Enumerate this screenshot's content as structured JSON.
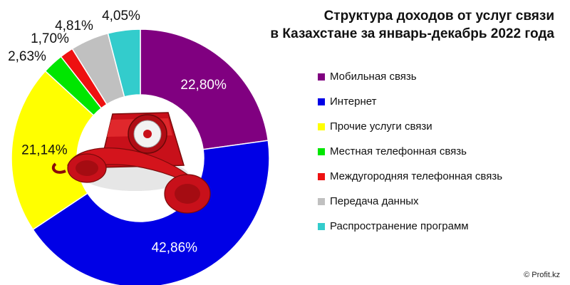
{
  "title_line1": "Структура доходов от услуг связи",
  "title_line2": "в Казахстане за январь-декабрь 2022 года",
  "copyright": "© Profit.kz",
  "chart_data": {
    "type": "pie",
    "donut": true,
    "legend_position": "right",
    "slices": [
      {
        "name": "Мобильная связь",
        "value": 22.8,
        "label": "22,80%",
        "color": "#800080"
      },
      {
        "name": "Интернет",
        "value": 42.86,
        "label": "42,86%",
        "color": "#0000e6"
      },
      {
        "name": "Прочие услуги связи",
        "value": 21.14,
        "label": "21,14%",
        "color": "#ffff00"
      },
      {
        "name": "Местная телефонная связь",
        "value": 2.63,
        "label": "2,63%",
        "color": "#00e600"
      },
      {
        "name": "Междугородняя телефонная связь",
        "value": 1.7,
        "label": "1,70%",
        "color": "#ee1111"
      },
      {
        "name": "Передача данных",
        "value": 4.81,
        "label": "4,81%",
        "color": "#c0c0c0"
      },
      {
        "name": "Распространение программ",
        "value": 4.05,
        "label": "4,05%",
        "color": "#33cccc"
      }
    ]
  }
}
